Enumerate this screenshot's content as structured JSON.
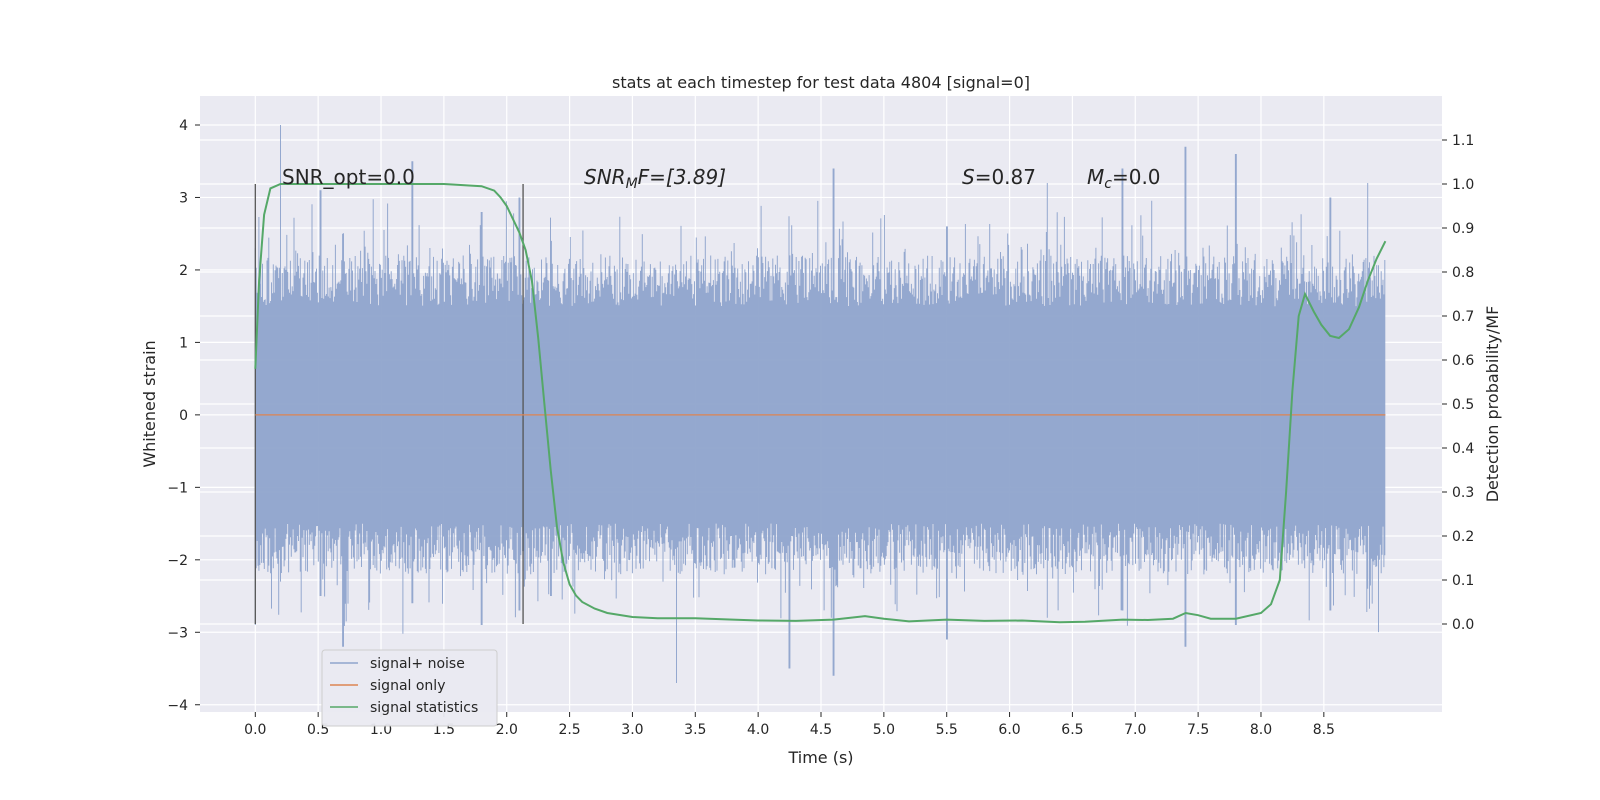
{
  "chart_data": {
    "type": "line",
    "title": "stats at each timestep for test data 4804 [signal=0]",
    "xlabel": "Time (s)",
    "ylabel_left": "Whitened strain",
    "ylabel_right": "Detection probability/MF",
    "xlim": [
      -0.44,
      9.44
    ],
    "ylim_left": [
      -4.1,
      4.4
    ],
    "ylim_right": [
      -0.2,
      1.2
    ],
    "x_ticks": [
      "0.0",
      "0.5",
      "1.0",
      "1.5",
      "2.0",
      "2.5",
      "3.0",
      "3.5",
      "4.0",
      "4.5",
      "5.0",
      "5.5",
      "6.0",
      "6.5",
      "7.0",
      "7.5",
      "8.0",
      "8.5"
    ],
    "y_ticks_left": [
      "−4",
      "−3",
      "−2",
      "−1",
      "0",
      "1",
      "2",
      "3",
      "4"
    ],
    "y_ticks_right": [
      "0.0",
      "0.1",
      "0.2",
      "0.3",
      "0.4",
      "0.5",
      "0.6",
      "0.7",
      "0.8",
      "0.9",
      "1.0",
      "1.1"
    ],
    "grid": true,
    "legend_position": "lower-left",
    "annotations": {
      "snr_opt": "SNR_opt=0.0",
      "snr_mf_main": "SNR",
      "snr_mf_sub": "M",
      "snr_mf_tail": "F=[3.89]",
      "s_main": "S",
      "s_tail": "=0.87",
      "mc_main": "M",
      "mc_sub": "c",
      "mc_tail": "=0.0"
    },
    "vertical_markers": [
      0.0,
      2.13
    ],
    "series": [
      {
        "name": "signal+ noise",
        "color": "#8fa4cc",
        "axis": "left",
        "x_range": [
          0.0,
          8.99
        ],
        "envelope_peaks": [
          [
            0.0,
            2.3,
            -2.9
          ],
          [
            0.2,
            4.0,
            -2.3
          ],
          [
            0.52,
            3.1,
            -2.5
          ],
          [
            0.7,
            2.5,
            -3.2
          ],
          [
            1.25,
            3.5,
            -2.6
          ],
          [
            1.8,
            2.8,
            -2.9
          ],
          [
            2.1,
            3.0,
            -2.7
          ],
          [
            2.35,
            2.4,
            -2.5
          ],
          [
            3.35,
            2.0,
            -3.7
          ],
          [
            4.25,
            2.2,
            -3.5
          ],
          [
            4.6,
            3.4,
            -3.6
          ],
          [
            5.5,
            2.6,
            -3.1
          ],
          [
            6.3,
            3.2,
            -2.8
          ],
          [
            6.9,
            3.4,
            -2.7
          ],
          [
            7.4,
            3.7,
            -3.2
          ],
          [
            7.8,
            3.6,
            -2.9
          ],
          [
            8.55,
            3.0,
            -2.7
          ],
          [
            8.85,
            3.2,
            -2.4
          ]
        ]
      },
      {
        "name": "signal only",
        "color": "#dd8452",
        "axis": "left",
        "x": [
          0.0,
          8.99
        ],
        "y": [
          0.0,
          0.0
        ]
      },
      {
        "name": "signal statistics",
        "color": "#55a868",
        "axis": "right",
        "x": [
          0.0,
          0.03,
          0.07,
          0.12,
          0.2,
          0.3,
          0.5,
          1.0,
          1.5,
          1.8,
          1.9,
          1.95,
          2.0,
          2.05,
          2.1,
          2.15,
          2.2,
          2.25,
          2.3,
          2.35,
          2.4,
          2.45,
          2.5,
          2.55,
          2.6,
          2.7,
          2.8,
          3.0,
          3.2,
          3.5,
          3.8,
          4.0,
          4.3,
          4.6,
          4.85,
          5.0,
          5.2,
          5.5,
          5.8,
          6.1,
          6.4,
          6.6,
          6.9,
          7.1,
          7.3,
          7.4,
          7.5,
          7.6,
          7.8,
          8.0,
          8.08,
          8.15,
          8.2,
          8.25,
          8.3,
          8.35,
          8.42,
          8.48,
          8.55,
          8.62,
          8.7,
          8.78,
          8.85,
          8.92,
          8.99
        ],
        "y": [
          0.58,
          0.78,
          0.93,
          0.99,
          1.0,
          1.0,
          1.0,
          1.0,
          1.0,
          0.995,
          0.985,
          0.97,
          0.95,
          0.92,
          0.89,
          0.85,
          0.78,
          0.65,
          0.5,
          0.35,
          0.22,
          0.14,
          0.09,
          0.065,
          0.05,
          0.035,
          0.025,
          0.016,
          0.013,
          0.013,
          0.01,
          0.008,
          0.007,
          0.01,
          0.018,
          0.012,
          0.006,
          0.01,
          0.007,
          0.008,
          0.004,
          0.005,
          0.01,
          0.009,
          0.012,
          0.025,
          0.02,
          0.012,
          0.012,
          0.025,
          0.045,
          0.1,
          0.3,
          0.53,
          0.7,
          0.75,
          0.71,
          0.68,
          0.655,
          0.65,
          0.67,
          0.72,
          0.78,
          0.83,
          0.87
        ]
      }
    ]
  }
}
